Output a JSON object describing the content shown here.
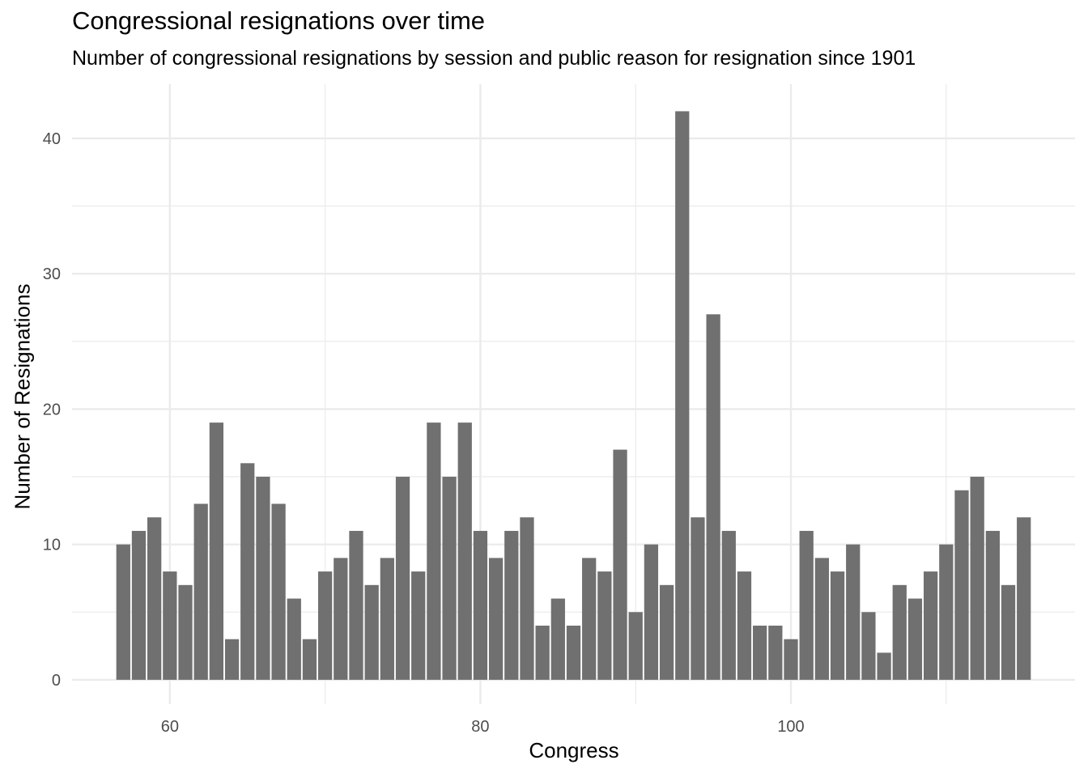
{
  "chart_data": {
    "type": "bar",
    "title": "Congressional resignations over time",
    "subtitle": "Number of congressional resignations by session and public reason for resignation since 1901",
    "xlabel": "Congress",
    "ylabel": "Number of Resignations",
    "x": [
      57,
      58,
      59,
      60,
      61,
      62,
      63,
      64,
      65,
      66,
      67,
      68,
      69,
      70,
      71,
      72,
      73,
      74,
      75,
      76,
      77,
      78,
      79,
      80,
      81,
      82,
      83,
      84,
      85,
      86,
      87,
      88,
      89,
      90,
      91,
      92,
      93,
      94,
      95,
      96,
      97,
      98,
      99,
      100,
      101,
      102,
      103,
      104,
      105,
      106,
      107,
      108,
      109,
      110,
      111,
      112,
      113,
      114,
      115
    ],
    "values": [
      10,
      11,
      12,
      8,
      7,
      13,
      19,
      3,
      16,
      15,
      13,
      6,
      3,
      8,
      9,
      11,
      7,
      9,
      15,
      8,
      19,
      15,
      19,
      11,
      9,
      11,
      12,
      4,
      6,
      4,
      9,
      8,
      17,
      5,
      10,
      7,
      42,
      12,
      27,
      11,
      8,
      4,
      4,
      3,
      11,
      9,
      8,
      10,
      5,
      2,
      7,
      6,
      8,
      10,
      14,
      15,
      11,
      7,
      12
    ],
    "xlim": [
      53.7,
      118.3
    ],
    "ylim": [
      -1.8,
      44
    ],
    "x_ticks": [
      60,
      80,
      100
    ],
    "x_minor_ticks": [
      70,
      90,
      110
    ],
    "y_ticks": [
      0,
      10,
      20,
      30,
      40
    ],
    "y_minor_ticks": [
      5,
      15,
      25,
      35
    ],
    "grid": true,
    "bar_color": "#707070",
    "grid_color": "#ebebeb",
    "tick_label_color": "#4d4d4d"
  }
}
